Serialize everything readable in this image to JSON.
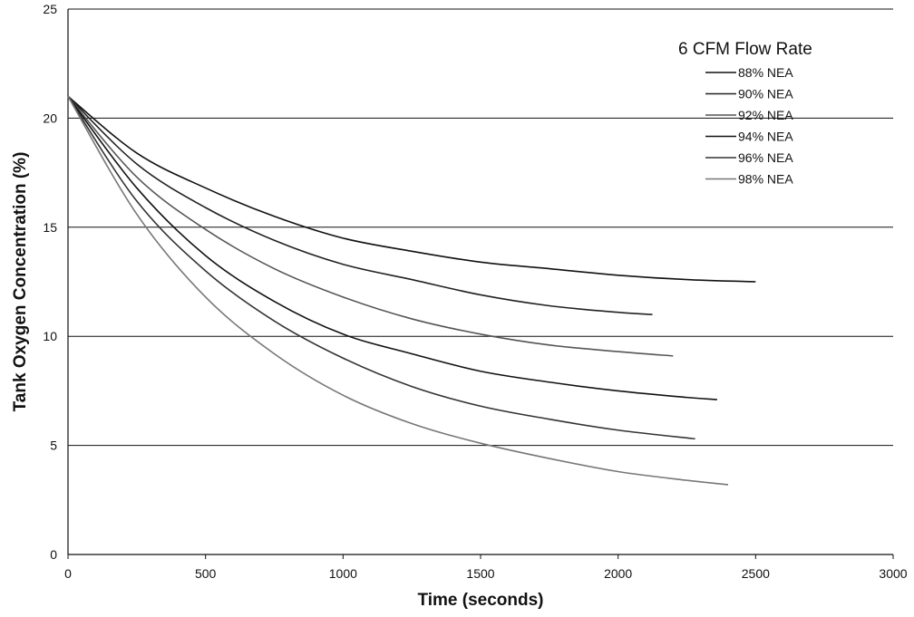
{
  "chart_data": {
    "type": "line",
    "title": "",
    "xlabel": "Time (seconds)",
    "ylabel": "Tank Oxygen Concentration (%)",
    "xlim": [
      0,
      3000
    ],
    "ylim": [
      0,
      25
    ],
    "xticks": [
      "0",
      "500",
      "1000",
      "1500",
      "2000",
      "2500",
      "3000"
    ],
    "yticks": [
      "0",
      "5",
      "10",
      "15",
      "20",
      "25"
    ],
    "grid": "horizontal",
    "legend_title": "6 CFM Flow Rate",
    "legend_position": "top-right",
    "series": [
      {
        "name": "88% NEA",
        "color": "#111111",
        "x": [
          0,
          250,
          500,
          750,
          1000,
          1250,
          1500,
          1750,
          2000,
          2250,
          2500
        ],
        "y": [
          21.0,
          18.4,
          16.8,
          15.5,
          14.5,
          13.9,
          13.4,
          13.1,
          12.8,
          12.6,
          12.5
        ]
      },
      {
        "name": "90% NEA",
        "color": "#222222",
        "x": [
          0,
          250,
          500,
          750,
          1000,
          1250,
          1500,
          1750,
          2000,
          2125
        ],
        "y": [
          21.0,
          17.9,
          15.9,
          14.4,
          13.3,
          12.6,
          11.9,
          11.4,
          11.1,
          11.0
        ]
      },
      {
        "name": "92% NEA",
        "color": "#555555",
        "x": [
          0,
          250,
          500,
          750,
          1000,
          1250,
          1500,
          1750,
          2000,
          2200
        ],
        "y": [
          21.0,
          17.3,
          14.9,
          13.1,
          11.8,
          10.8,
          10.1,
          9.6,
          9.3,
          9.1
        ]
      },
      {
        "name": "94% NEA",
        "color": "#111111",
        "x": [
          0,
          250,
          500,
          750,
          1000,
          1250,
          1500,
          1750,
          2000,
          2250,
          2360
        ],
        "y": [
          21.0,
          16.8,
          13.7,
          11.6,
          10.1,
          9.2,
          8.4,
          7.9,
          7.5,
          7.2,
          7.1
        ]
      },
      {
        "name": "96% NEA",
        "color": "#333333",
        "x": [
          0,
          250,
          500,
          750,
          1000,
          1250,
          1500,
          1750,
          2000,
          2280
        ],
        "y": [
          21.0,
          16.2,
          13.0,
          10.7,
          9.0,
          7.7,
          6.8,
          6.2,
          5.7,
          5.3
        ]
      },
      {
        "name": "98% NEA",
        "color": "#777777",
        "x": [
          0,
          250,
          500,
          750,
          1000,
          1250,
          1500,
          1750,
          2000,
          2250,
          2400
        ],
        "y": [
          21.0,
          15.6,
          11.8,
          9.2,
          7.3,
          6.0,
          5.1,
          4.4,
          3.8,
          3.4,
          3.2
        ]
      }
    ]
  }
}
